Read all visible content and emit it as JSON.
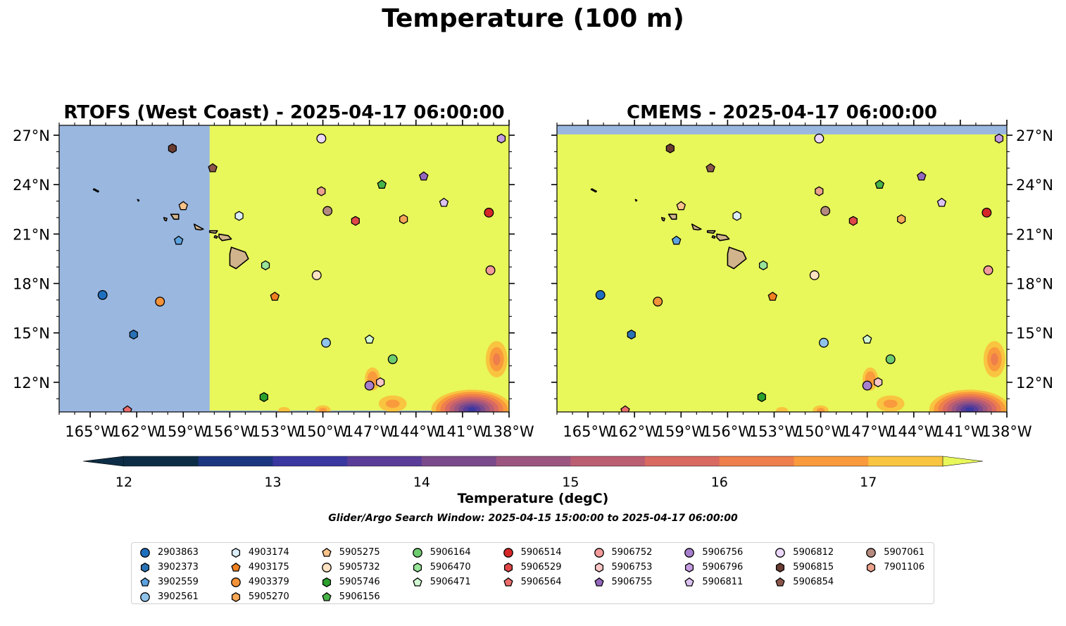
{
  "figure": {
    "title": "Temperature (100 m)",
    "search_window": "Glider/Argo Search Window: 2025-04-15 15:00:00 to 2025-04-17 06:00:00"
  },
  "panels": [
    {
      "id": "rtofs",
      "title": "RTOFS (West Coast) - 2025-04-17 06:00:00",
      "model_west_edge_lon": -157.3,
      "masked_top": false
    },
    {
      "id": "cmems",
      "title": "CMEMS - 2025-04-17 06:00:00",
      "model_west_edge_lon": null,
      "masked_top": true
    }
  ],
  "map_extent": {
    "lon_min": -167,
    "lon_max": -138,
    "lat_min": 10.2,
    "lat_max": 27.6
  },
  "x_ticks": [
    "165°W",
    "162°W",
    "159°W",
    "156°W",
    "153°W",
    "150°W",
    "147°W",
    "144°W",
    "141°W",
    "138°W"
  ],
  "x_tick_values": [
    -165,
    -162,
    -159,
    -156,
    -153,
    -150,
    -147,
    -144,
    -141,
    -138
  ],
  "y_ticks": [
    "27°N",
    "24°N",
    "21°N",
    "18°N",
    "15°N",
    "12°N"
  ],
  "y_tick_values": [
    27,
    24,
    21,
    18,
    15,
    12
  ],
  "colors": {
    "land": "#d2b48c",
    "masked": "#9ab7e0",
    "warm": "#e8f75a"
  },
  "colorbar": {
    "label": "Temperature (degC)",
    "ticks": [
      "12",
      "13",
      "14",
      "15",
      "16",
      "17"
    ],
    "levels": [
      12,
      12.5,
      13,
      13.5,
      14,
      14.5,
      15,
      15.5,
      16,
      16.5,
      17,
      17.5
    ],
    "colors": [
      "#0c2d45",
      "#1c3580",
      "#3b37a0",
      "#5a3d98",
      "#7b4a8c",
      "#9c5580",
      "#bc5e72",
      "#d96a62",
      "#ee7e4c",
      "#f99a3c",
      "#f9c440",
      "#e8f75a"
    ]
  },
  "floats": [
    {
      "id": "2903863",
      "marker": "circle",
      "color": "#1f6fbf",
      "lon": -164.2,
      "lat": 17.3
    },
    {
      "id": "3902373",
      "marker": "hexagon",
      "color": "#2a72b5",
      "lon": -162.2,
      "lat": 14.9
    },
    {
      "id": "3902559",
      "marker": "pentagon",
      "color": "#5da3df",
      "lon": -159.3,
      "lat": 20.6
    },
    {
      "id": "3902561",
      "marker": "circle",
      "color": "#8fc3ea",
      "lon": -149.8,
      "lat": 14.4
    },
    {
      "id": "4903174",
      "marker": "hexagon",
      "color": "#dceefa",
      "lon": -155.4,
      "lat": 22.1
    },
    {
      "id": "4903175",
      "marker": "pentagon",
      "color": "#f08020",
      "lon": -153.1,
      "lat": 17.2
    },
    {
      "id": "4903379",
      "marker": "circle",
      "color": "#f39238",
      "lon": -160.5,
      "lat": 16.9
    },
    {
      "id": "5905270",
      "marker": "hexagon",
      "color": "#f7a856",
      "lon": -144.8,
      "lat": 21.9
    },
    {
      "id": "5905275",
      "marker": "pentagon",
      "color": "#fac38a",
      "lon": -159.0,
      "lat": 22.7
    },
    {
      "id": "5905732",
      "marker": "circle",
      "color": "#fde3c2",
      "lon": -150.4,
      "lat": 18.5
    },
    {
      "id": "5905746",
      "marker": "hexagon",
      "color": "#2ca02c",
      "lon": -153.8,
      "lat": 11.1
    },
    {
      "id": "5906156",
      "marker": "pentagon",
      "color": "#48b448",
      "lon": -146.2,
      "lat": 24.0
    },
    {
      "id": "5906164",
      "marker": "circle",
      "color": "#6ecb6e",
      "lon": -145.5,
      "lat": 13.4
    },
    {
      "id": "5906470",
      "marker": "hexagon",
      "color": "#98e498",
      "lon": -153.7,
      "lat": 19.1
    },
    {
      "id": "5906471",
      "marker": "pentagon",
      "color": "#d2f8d2",
      "lon": -147.0,
      "lat": 14.6
    },
    {
      "id": "5906514",
      "marker": "circle",
      "color": "#d62728",
      "lon": -139.3,
      "lat": 22.3
    },
    {
      "id": "5906529",
      "marker": "hexagon",
      "color": "#e04848",
      "lon": -147.9,
      "lat": 21.8
    },
    {
      "id": "5906564",
      "marker": "pentagon",
      "color": "#ec6c6c",
      "lon": -162.6,
      "lat": 10.3
    },
    {
      "id": "5906752",
      "marker": "circle",
      "color": "#f39a9a",
      "lon": -139.2,
      "lat": 18.8
    },
    {
      "id": "5906753",
      "marker": "hexagon",
      "color": "#fbc6c6",
      "lon": -146.3,
      "lat": 12.0
    },
    {
      "id": "5906755",
      "marker": "pentagon",
      "color": "#9467bd",
      "lon": -143.5,
      "lat": 24.5
    },
    {
      "id": "5906756",
      "marker": "circle",
      "color": "#a77fcc",
      "lon": -147.0,
      "lat": 11.8
    },
    {
      "id": "5906796",
      "marker": "hexagon",
      "color": "#c49be0",
      "lon": -138.5,
      "lat": 26.8
    },
    {
      "id": "5906811",
      "marker": "pentagon",
      "color": "#dcc2f2",
      "lon": -142.2,
      "lat": 22.9
    },
    {
      "id": "5906812",
      "marker": "circle",
      "color": "#ecd8fb",
      "lon": -150.1,
      "lat": 26.8
    },
    {
      "id": "5906815",
      "marker": "hexagon",
      "color": "#6b3d32",
      "lon": -159.7,
      "lat": 26.2
    },
    {
      "id": "5906854",
      "marker": "pentagon",
      "color": "#8c564b",
      "lon": -157.1,
      "lat": 25.0
    },
    {
      "id": "5907061",
      "marker": "circle",
      "color": "#b58a7e",
      "lon": -149.7,
      "lat": 22.4
    },
    {
      "id": "7901106",
      "marker": "hexagon",
      "color": "#eba18c",
      "lon": -150.1,
      "lat": 23.6
    }
  ],
  "islands": [
    [
      [
        -155.9,
        20.2
      ],
      [
        -155.0,
        19.9
      ],
      [
        -154.8,
        19.5
      ],
      [
        -155.6,
        18.9
      ],
      [
        -156.0,
        19.1
      ],
      [
        -156.0,
        19.8
      ]
    ],
    [
      [
        -156.7,
        21.0
      ],
      [
        -156.1,
        20.9
      ],
      [
        -155.9,
        20.7
      ],
      [
        -156.5,
        20.6
      ],
      [
        -156.7,
        20.8
      ]
    ],
    [
      [
        -157.3,
        21.2
      ],
      [
        -156.8,
        21.2
      ],
      [
        -156.9,
        21.05
      ],
      [
        -157.3,
        21.1
      ]
    ],
    [
      [
        -156.95,
        20.9
      ],
      [
        -156.8,
        20.85
      ],
      [
        -156.85,
        20.75
      ],
      [
        -157.0,
        20.8
      ]
    ],
    [
      [
        -158.3,
        21.6
      ],
      [
        -157.7,
        21.3
      ],
      [
        -157.9,
        21.25
      ],
      [
        -158.2,
        21.3
      ]
    ],
    [
      [
        -159.8,
        22.2
      ],
      [
        -159.3,
        22.2
      ],
      [
        -159.3,
        21.9
      ],
      [
        -159.6,
        21.9
      ]
    ],
    [
      [
        -160.25,
        22.0
      ],
      [
        -160.05,
        21.95
      ],
      [
        -160.1,
        21.8
      ],
      [
        -160.2,
        21.85
      ]
    ],
    [
      [
        -164.8,
        23.7
      ],
      [
        -164.5,
        23.55
      ],
      [
        -164.45,
        23.6
      ],
      [
        -164.75,
        23.75
      ]
    ],
    [
      [
        -161.95,
        23.1
      ],
      [
        -161.85,
        23.05
      ],
      [
        -161.9,
        23.0
      ]
    ]
  ],
  "cold_blobs": [
    {
      "lon": -140.4,
      "lat": 10.35,
      "rx": 2.6,
      "ry": 1.2,
      "t": 13.4
    },
    {
      "lon": -138.8,
      "lat": 13.4,
      "rx": 0.7,
      "ry": 1.1,
      "t": 16.3
    },
    {
      "lon": -146.8,
      "lat": 12.2,
      "rx": 0.5,
      "ry": 0.7,
      "t": 16.6
    },
    {
      "lon": -145.5,
      "lat": 10.7,
      "rx": 0.9,
      "ry": 0.5,
      "t": 16.8
    },
    {
      "lon": -150.0,
      "lat": 10.3,
      "rx": 0.5,
      "ry": 0.3,
      "t": 16.9
    },
    {
      "lon": -152.5,
      "lat": 10.25,
      "rx": 0.4,
      "ry": 0.25,
      "t": 17.1
    }
  ]
}
